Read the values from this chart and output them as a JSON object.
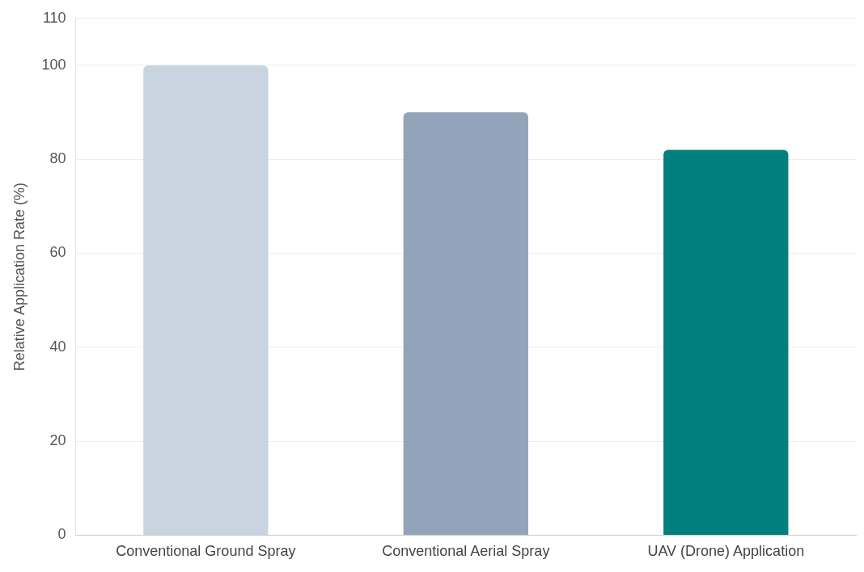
{
  "chart_data": {
    "type": "bar",
    "ylabel": "Relative Application Rate (%)",
    "categories": [
      "Conventional Ground Spray",
      "Conventional Aerial Spray",
      "UAV (Drone) Application"
    ],
    "values": [
      100,
      90,
      82
    ],
    "colors": [
      "#c9d4e1",
      "#93a3b9",
      "#007f7e"
    ],
    "ylim": [
      0,
      110
    ],
    "yticks": [
      0,
      20,
      40,
      60,
      80,
      100,
      110
    ],
    "grid": "y",
    "legend": false
  }
}
